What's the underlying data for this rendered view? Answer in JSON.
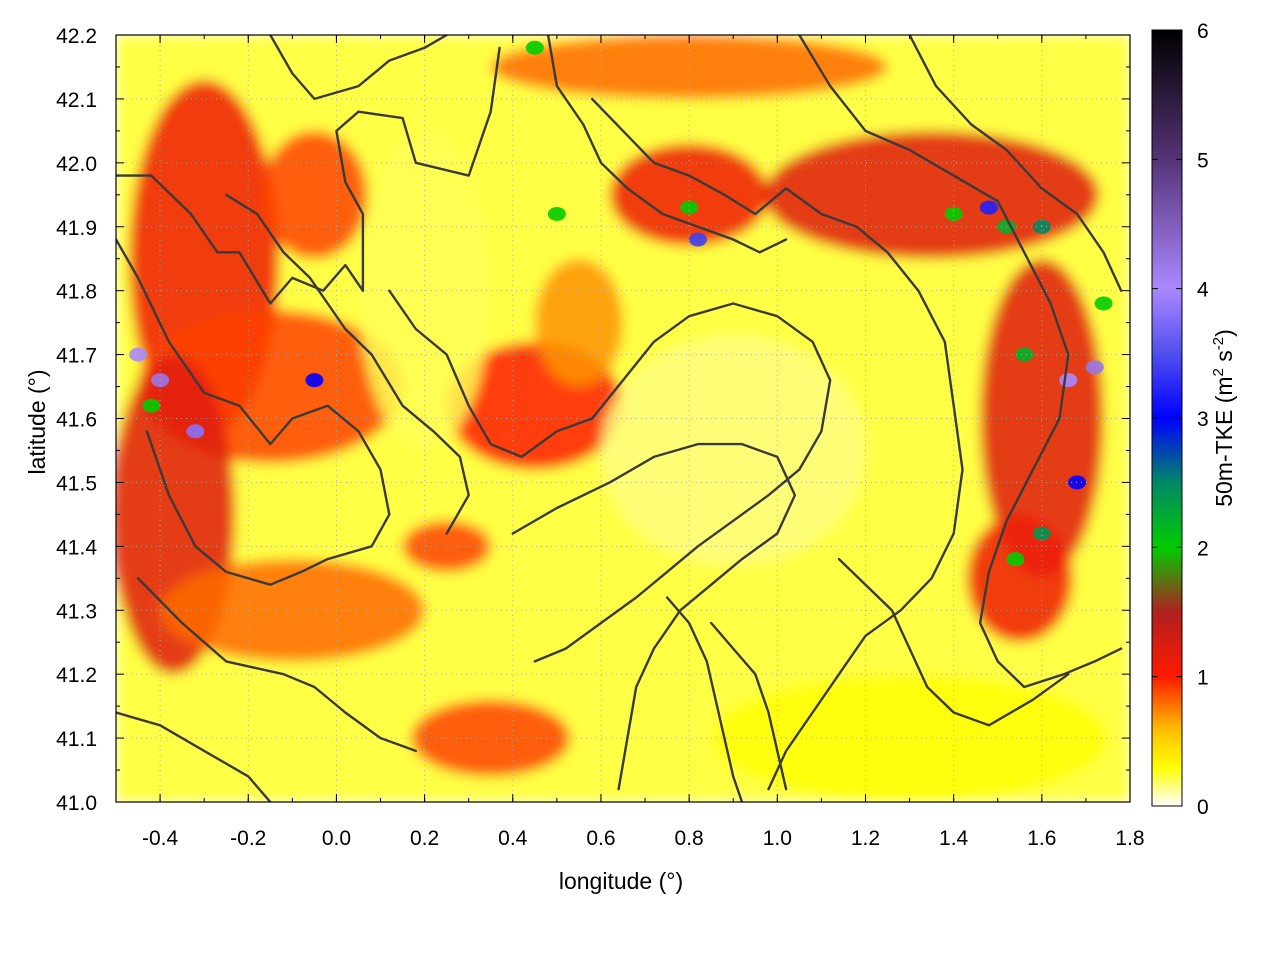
{
  "chart_data": {
    "type": "heatmap",
    "title": "",
    "xlabel": "longitude (°)",
    "ylabel": "latitude (°)",
    "xlim": [
      -0.5,
      1.8
    ],
    "ylim": [
      41.0,
      42.2
    ],
    "x_ticks": [
      "-0.4",
      "-0.2",
      "0.0",
      "0.2",
      "0.4",
      "0.6",
      "0.8",
      "1.0",
      "1.2",
      "1.4",
      "1.6",
      "1.8"
    ],
    "y_ticks": [
      "41.0",
      "41.1",
      "41.2",
      "41.3",
      "41.4",
      "41.5",
      "41.6",
      "41.7",
      "41.8",
      "41.9",
      "42.0",
      "42.1",
      "42.2"
    ],
    "grid": true,
    "colorbar": {
      "label": "50m-TKE (m² s⁻²)",
      "label_main": "50m-TKE (m",
      "label_sup1": "2",
      "label_mid": " s",
      "label_sup2": "-2",
      "label_end": ")",
      "range": [
        0,
        6
      ],
      "ticks": [
        "0",
        "1",
        "2",
        "3",
        "4",
        "5",
        "6"
      ],
      "stops": [
        {
          "value": 0.0,
          "color": "#ffffff"
        },
        {
          "value": 0.3,
          "color": "#ffff00"
        },
        {
          "value": 0.6,
          "color": "#ffbb00"
        },
        {
          "value": 1.0,
          "color": "#ff1a00"
        },
        {
          "value": 1.5,
          "color": "#b02020"
        },
        {
          "value": 2.0,
          "color": "#00cc00"
        },
        {
          "value": 2.5,
          "color": "#008866"
        },
        {
          "value": 3.0,
          "color": "#0000ff"
        },
        {
          "value": 3.5,
          "color": "#5050ee"
        },
        {
          "value": 4.0,
          "color": "#aa88ff"
        },
        {
          "value": 5.0,
          "color": "#553377"
        },
        {
          "value": 6.0,
          "color": "#000000"
        }
      ]
    },
    "field_regions": [
      {
        "lon": -0.3,
        "lat": 41.85,
        "rx": 0.17,
        "ry": 0.28,
        "value": 1.1
      },
      {
        "lon": -0.15,
        "lat": 41.65,
        "rx": 0.3,
        "ry": 0.12,
        "value": 0.9
      },
      {
        "lon": -0.37,
        "lat": 41.45,
        "rx": 0.14,
        "ry": 0.25,
        "value": 1.2
      },
      {
        "lon": -0.1,
        "lat": 41.3,
        "rx": 0.3,
        "ry": 0.08,
        "value": 0.8
      },
      {
        "lon": -0.05,
        "lat": 41.95,
        "rx": 0.12,
        "ry": 0.1,
        "value": 0.9
      },
      {
        "lon": 0.45,
        "lat": 41.62,
        "rx": 0.2,
        "ry": 0.1,
        "value": 1.0
      },
      {
        "lon": 0.55,
        "lat": 41.75,
        "rx": 0.1,
        "ry": 0.1,
        "value": 0.7
      },
      {
        "lon": 0.35,
        "lat": 41.1,
        "rx": 0.18,
        "ry": 0.06,
        "value": 0.9
      },
      {
        "lon": 0.8,
        "lat": 41.95,
        "rx": 0.18,
        "ry": 0.08,
        "value": 1.1
      },
      {
        "lon": 1.35,
        "lat": 41.95,
        "rx": 0.38,
        "ry": 0.1,
        "value": 1.2
      },
      {
        "lon": 1.6,
        "lat": 41.6,
        "rx": 0.14,
        "ry": 0.25,
        "value": 1.2
      },
      {
        "lon": 1.55,
        "lat": 41.35,
        "rx": 0.12,
        "ry": 0.1,
        "value": 1.1
      },
      {
        "lon": 0.25,
        "lat": 41.4,
        "rx": 0.1,
        "ry": 0.04,
        "value": 0.9
      },
      {
        "lon": 1.3,
        "lat": 41.1,
        "rx": 0.45,
        "ry": 0.1,
        "value": 0.3
      },
      {
        "lon": 0.9,
        "lat": 41.55,
        "rx": 0.3,
        "ry": 0.18,
        "value": 0.15
      },
      {
        "lon": 0.2,
        "lat": 41.8,
        "rx": 0.15,
        "ry": 0.25,
        "value": 0.2
      },
      {
        "lon": 0.8,
        "lat": 42.15,
        "rx": 0.45,
        "ry": 0.05,
        "value": 0.8
      }
    ],
    "field_peaks": [
      {
        "lon": -0.45,
        "lat": 41.7,
        "value": 4.0
      },
      {
        "lon": -0.4,
        "lat": 41.66,
        "value": 4.2
      },
      {
        "lon": -0.32,
        "lat": 41.58,
        "value": 3.8
      },
      {
        "lon": -0.42,
        "lat": 41.62,
        "value": 2.0
      },
      {
        "lon": -0.05,
        "lat": 41.66,
        "value": 3.0
      },
      {
        "lon": 0.5,
        "lat": 41.92,
        "value": 2.0
      },
      {
        "lon": 0.82,
        "lat": 41.88,
        "value": 3.4
      },
      {
        "lon": 0.8,
        "lat": 41.93,
        "value": 2.0
      },
      {
        "lon": 1.4,
        "lat": 41.92,
        "value": 2.0
      },
      {
        "lon": 1.48,
        "lat": 41.93,
        "value": 3.2
      },
      {
        "lon": 1.52,
        "lat": 41.9,
        "value": 2.2
      },
      {
        "lon": 1.6,
        "lat": 41.9,
        "value": 2.5
      },
      {
        "lon": 1.56,
        "lat": 41.7,
        "value": 2.2
      },
      {
        "lon": 1.66,
        "lat": 41.66,
        "value": 4.0
      },
      {
        "lon": 1.72,
        "lat": 41.68,
        "value": 4.2
      },
      {
        "lon": 1.74,
        "lat": 41.78,
        "value": 2.0
      },
      {
        "lon": 1.68,
        "lat": 41.5,
        "value": 3.0
      },
      {
        "lon": 1.6,
        "lat": 41.42,
        "value": 2.4
      },
      {
        "lon": 1.54,
        "lat": 41.38,
        "value": 2.0
      },
      {
        "lon": 0.45,
        "lat": 42.18,
        "value": 2.0
      }
    ],
    "contours": [
      [
        [
          -0.5,
          41.98
        ],
        [
          -0.42,
          41.98
        ],
        [
          -0.33,
          41.92
        ],
        [
          -0.27,
          41.86
        ],
        [
          -0.22,
          41.86
        ],
        [
          -0.15,
          41.78
        ],
        [
          -0.1,
          41.82
        ],
        [
          -0.03,
          41.8
        ],
        [
          0.02,
          41.84
        ],
        [
          0.06,
          41.8
        ],
        [
          0.06,
          41.92
        ],
        [
          0.02,
          41.97
        ],
        [
          0.0,
          42.05
        ],
        [
          0.05,
          42.08
        ],
        [
          0.15,
          42.07
        ],
        [
          0.18,
          42.0
        ],
        [
          0.3,
          41.98
        ],
        [
          0.35,
          42.08
        ],
        [
          0.37,
          42.18
        ]
      ],
      [
        [
          -0.5,
          41.88
        ],
        [
          -0.45,
          41.82
        ],
        [
          -0.38,
          41.72
        ],
        [
          -0.3,
          41.64
        ],
        [
          -0.22,
          41.62
        ],
        [
          -0.15,
          41.56
        ],
        [
          -0.1,
          41.6
        ],
        [
          -0.02,
          41.62
        ],
        [
          0.05,
          41.58
        ],
        [
          0.1,
          41.52
        ],
        [
          0.12,
          41.45
        ],
        [
          0.08,
          41.4
        ],
        [
          -0.02,
          41.38
        ],
        [
          -0.08,
          41.36
        ],
        [
          -0.15,
          41.34
        ],
        [
          -0.25,
          41.36
        ],
        [
          -0.32,
          41.4
        ],
        [
          -0.38,
          41.48
        ],
        [
          -0.43,
          41.58
        ]
      ],
      [
        [
          -0.45,
          41.35
        ],
        [
          -0.35,
          41.28
        ],
        [
          -0.25,
          41.22
        ],
        [
          -0.12,
          41.2
        ],
        [
          -0.05,
          41.18
        ],
        [
          0.02,
          41.14
        ],
        [
          0.1,
          41.1
        ],
        [
          0.18,
          41.08
        ]
      ],
      [
        [
          -0.5,
          41.14
        ],
        [
          -0.4,
          41.12
        ],
        [
          -0.3,
          41.08
        ],
        [
          -0.2,
          41.04
        ],
        [
          -0.15,
          41.0
        ]
      ],
      [
        [
          -0.25,
          41.95
        ],
        [
          -0.18,
          41.92
        ],
        [
          -0.12,
          41.86
        ],
        [
          -0.06,
          41.82
        ],
        [
          0.02,
          41.74
        ],
        [
          0.08,
          41.7
        ],
        [
          0.15,
          41.62
        ],
        [
          0.22,
          41.58
        ],
        [
          0.28,
          41.54
        ],
        [
          0.3,
          41.48
        ],
        [
          0.25,
          41.42
        ]
      ],
      [
        [
          0.12,
          41.8
        ],
        [
          0.18,
          41.74
        ],
        [
          0.25,
          41.7
        ],
        [
          0.3,
          41.62
        ],
        [
          0.35,
          41.56
        ],
        [
          0.42,
          41.54
        ],
        [
          0.5,
          41.58
        ],
        [
          0.58,
          41.6
        ],
        [
          0.65,
          41.66
        ],
        [
          0.72,
          41.72
        ],
        [
          0.8,
          41.76
        ],
        [
          0.9,
          41.78
        ],
        [
          1.0,
          41.76
        ],
        [
          1.08,
          41.72
        ],
        [
          1.12,
          41.66
        ],
        [
          1.1,
          41.58
        ],
        [
          1.05,
          41.52
        ],
        [
          0.98,
          41.48
        ],
        [
          0.9,
          41.44
        ],
        [
          0.82,
          41.4
        ],
        [
          0.75,
          41.36
        ],
        [
          0.68,
          41.32
        ],
        [
          0.6,
          41.28
        ],
        [
          0.52,
          41.24
        ],
        [
          0.45,
          41.22
        ]
      ],
      [
        [
          0.4,
          41.42
        ],
        [
          0.5,
          41.46
        ],
        [
          0.62,
          41.5
        ],
        [
          0.72,
          41.54
        ],
        [
          0.82,
          41.56
        ],
        [
          0.92,
          41.56
        ],
        [
          1.0,
          41.54
        ],
        [
          1.04,
          41.48
        ],
        [
          1.0,
          41.42
        ],
        [
          0.92,
          41.38
        ],
        [
          0.85,
          41.34
        ],
        [
          0.78,
          41.3
        ],
        [
          0.72,
          41.24
        ],
        [
          0.68,
          41.18
        ],
        [
          0.66,
          41.1
        ],
        [
          0.64,
          41.02
        ]
      ],
      [
        [
          0.58,
          42.1
        ],
        [
          0.65,
          42.05
        ],
        [
          0.72,
          42.0
        ],
        [
          0.8,
          41.98
        ],
        [
          0.88,
          41.95
        ],
        [
          0.95,
          41.92
        ],
        [
          1.02,
          41.96
        ],
        [
          1.1,
          41.92
        ],
        [
          1.18,
          41.9
        ],
        [
          1.25,
          41.86
        ],
        [
          1.32,
          41.8
        ],
        [
          1.38,
          41.72
        ],
        [
          1.4,
          41.62
        ],
        [
          1.42,
          41.52
        ],
        [
          1.4,
          41.42
        ],
        [
          1.35,
          41.35
        ],
        [
          1.28,
          41.3
        ],
        [
          1.2,
          41.26
        ],
        [
          1.14,
          41.2
        ],
        [
          1.08,
          41.14
        ],
        [
          1.02,
          41.08
        ],
        [
          0.98,
          41.02
        ]
      ],
      [
        [
          0.48,
          42.2
        ],
        [
          0.5,
          42.12
        ],
        [
          0.56,
          42.06
        ],
        [
          0.6,
          42.0
        ],
        [
          0.66,
          41.96
        ],
        [
          0.74,
          41.92
        ],
        [
          0.82,
          41.9
        ],
        [
          0.9,
          41.88
        ],
        [
          0.96,
          41.86
        ],
        [
          1.02,
          41.88
        ]
      ],
      [
        [
          1.05,
          42.2
        ],
        [
          1.12,
          42.12
        ],
        [
          1.2,
          42.05
        ],
        [
          1.3,
          42.02
        ],
        [
          1.4,
          41.98
        ],
        [
          1.5,
          41.94
        ],
        [
          1.56,
          41.86
        ],
        [
          1.62,
          41.78
        ],
        [
          1.66,
          41.7
        ],
        [
          1.64,
          41.6
        ],
        [
          1.58,
          41.52
        ],
        [
          1.52,
          41.44
        ],
        [
          1.48,
          41.36
        ],
        [
          1.46,
          41.28
        ],
        [
          1.5,
          41.22
        ],
        [
          1.56,
          41.18
        ],
        [
          1.65,
          41.2
        ],
        [
          1.72,
          41.22
        ],
        [
          1.78,
          41.24
        ]
      ],
      [
        [
          1.3,
          42.2
        ],
        [
          1.36,
          42.12
        ],
        [
          1.44,
          42.06
        ],
        [
          1.52,
          42.02
        ],
        [
          1.6,
          41.96
        ],
        [
          1.68,
          41.92
        ],
        [
          1.74,
          41.86
        ],
        [
          1.78,
          41.8
        ]
      ],
      [
        [
          -0.15,
          42.2
        ],
        [
          -0.1,
          42.14
        ],
        [
          -0.05,
          42.1
        ],
        [
          0.05,
          42.12
        ],
        [
          0.12,
          42.16
        ],
        [
          0.2,
          42.18
        ],
        [
          0.25,
          42.2
        ]
      ],
      [
        [
          1.14,
          41.38
        ],
        [
          1.2,
          41.34
        ],
        [
          1.26,
          41.3
        ],
        [
          1.3,
          41.24
        ],
        [
          1.34,
          41.18
        ],
        [
          1.4,
          41.14
        ],
        [
          1.48,
          41.12
        ],
        [
          1.58,
          41.16
        ],
        [
          1.66,
          41.2
        ]
      ],
      [
        [
          0.85,
          41.28
        ],
        [
          0.9,
          41.24
        ],
        [
          0.95,
          41.2
        ],
        [
          0.98,
          41.14
        ],
        [
          1.0,
          41.08
        ],
        [
          1.02,
          41.02
        ]
      ],
      [
        [
          0.75,
          41.32
        ],
        [
          0.8,
          41.28
        ],
        [
          0.84,
          41.22
        ],
        [
          0.86,
          41.16
        ],
        [
          0.88,
          41.1
        ],
        [
          0.9,
          41.04
        ],
        [
          0.92,
          41.0
        ]
      ]
    ]
  }
}
